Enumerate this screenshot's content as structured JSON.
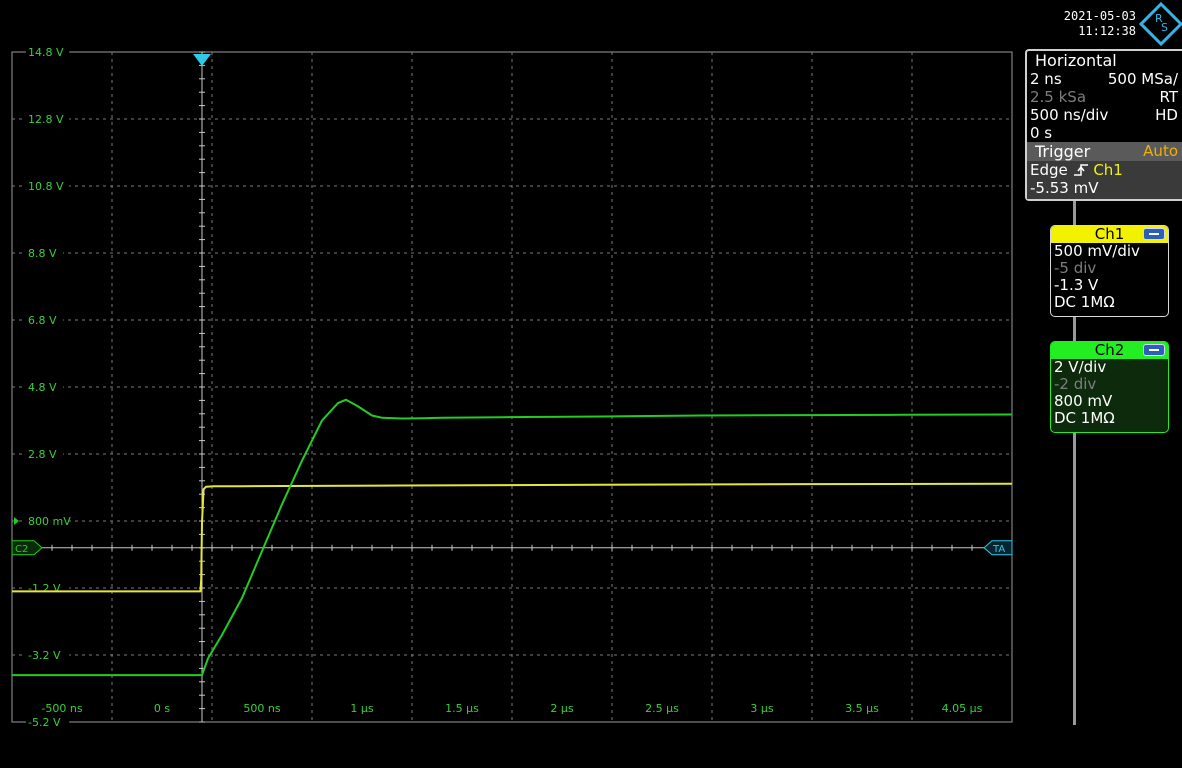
{
  "header": {
    "date": "2021-05-03",
    "time": "11:12:38",
    "logo_text": "R&S"
  },
  "display": {
    "y_labels": [
      "14.8 V",
      "12.8 V",
      "10.8 V",
      "8.8 V",
      "6.8 V",
      "4.8 V",
      "2.8 V",
      "800 mV",
      "-1.2 V",
      "-3.2 V",
      "-5.2 V"
    ],
    "x_labels": [
      "-500 ns",
      "0 s",
      "500 ns",
      "1 µs",
      "1.5 µs",
      "2 µs",
      "2.5 µs",
      "3 µs",
      "3.5 µs",
      "4.05 µs"
    ],
    "ch2_marker": "C2",
    "trigger_level_marker": "TA",
    "colors": {
      "grid": "#7a7a7a",
      "label": "#3ccf3c",
      "ch1": "#e6e63a",
      "ch2": "#22cc22",
      "trigger": "#2ec8e8",
      "border": "#9a9a9a"
    }
  },
  "horizontal": {
    "title": "Horizontal",
    "resolution": "2 ns",
    "sample_rate": "500 MSa/",
    "record_length": "2.5 kSa",
    "mode_rt": "RT",
    "time_scale": "500 ns/div",
    "mode_hd": "HD",
    "position": "0 s"
  },
  "trigger": {
    "title": "Trigger",
    "mode": "Auto",
    "type": "Edge",
    "slope_icon": "rising-edge-icon",
    "source": "Ch1",
    "level": "-5.53 mV"
  },
  "channels": [
    {
      "name": "Ch1",
      "scale": "500 mV/div",
      "offset": "-5 div",
      "position": "-1.3 V",
      "coupling": "DC 1MΩ",
      "color": "#f2f200"
    },
    {
      "name": "Ch2",
      "scale": "2 V/div",
      "offset": "-2 div",
      "position": "800 mV",
      "coupling": "DC 1MΩ",
      "color": "#22ee22"
    }
  ],
  "chart_data": {
    "type": "line",
    "xlabel": "",
    "ylabel": "",
    "x_unit": "ns",
    "xlim": [
      -950,
      4050
    ],
    "ylim": [
      -5.2,
      14.8
    ],
    "grid": true,
    "series": [
      {
        "name": "Ch1",
        "x": [
          -950,
          -8,
          -4,
          0,
          8,
          20,
          60,
          200,
          1000,
          2000,
          3000,
          4050
        ],
        "y": [
          -1.3,
          -1.3,
          -0.95,
          0.75,
          1.75,
          1.82,
          1.84,
          1.84,
          1.86,
          1.88,
          1.9,
          1.91
        ]
      },
      {
        "name": "Ch2",
        "x": [
          -950,
          0,
          30,
          100,
          200,
          300,
          400,
          500,
          600,
          680,
          720,
          780,
          850,
          900,
          1000,
          1100,
          1200,
          1500,
          2000,
          2500,
          3000,
          3500,
          4050
        ],
        "y": [
          -3.8,
          -3.8,
          -3.3,
          -2.6,
          -1.5,
          -0.1,
          1.3,
          2.6,
          3.8,
          4.32,
          4.42,
          4.22,
          3.95,
          3.88,
          3.86,
          3.87,
          3.88,
          3.9,
          3.92,
          3.95,
          3.96,
          3.97,
          3.98
        ]
      }
    ]
  }
}
